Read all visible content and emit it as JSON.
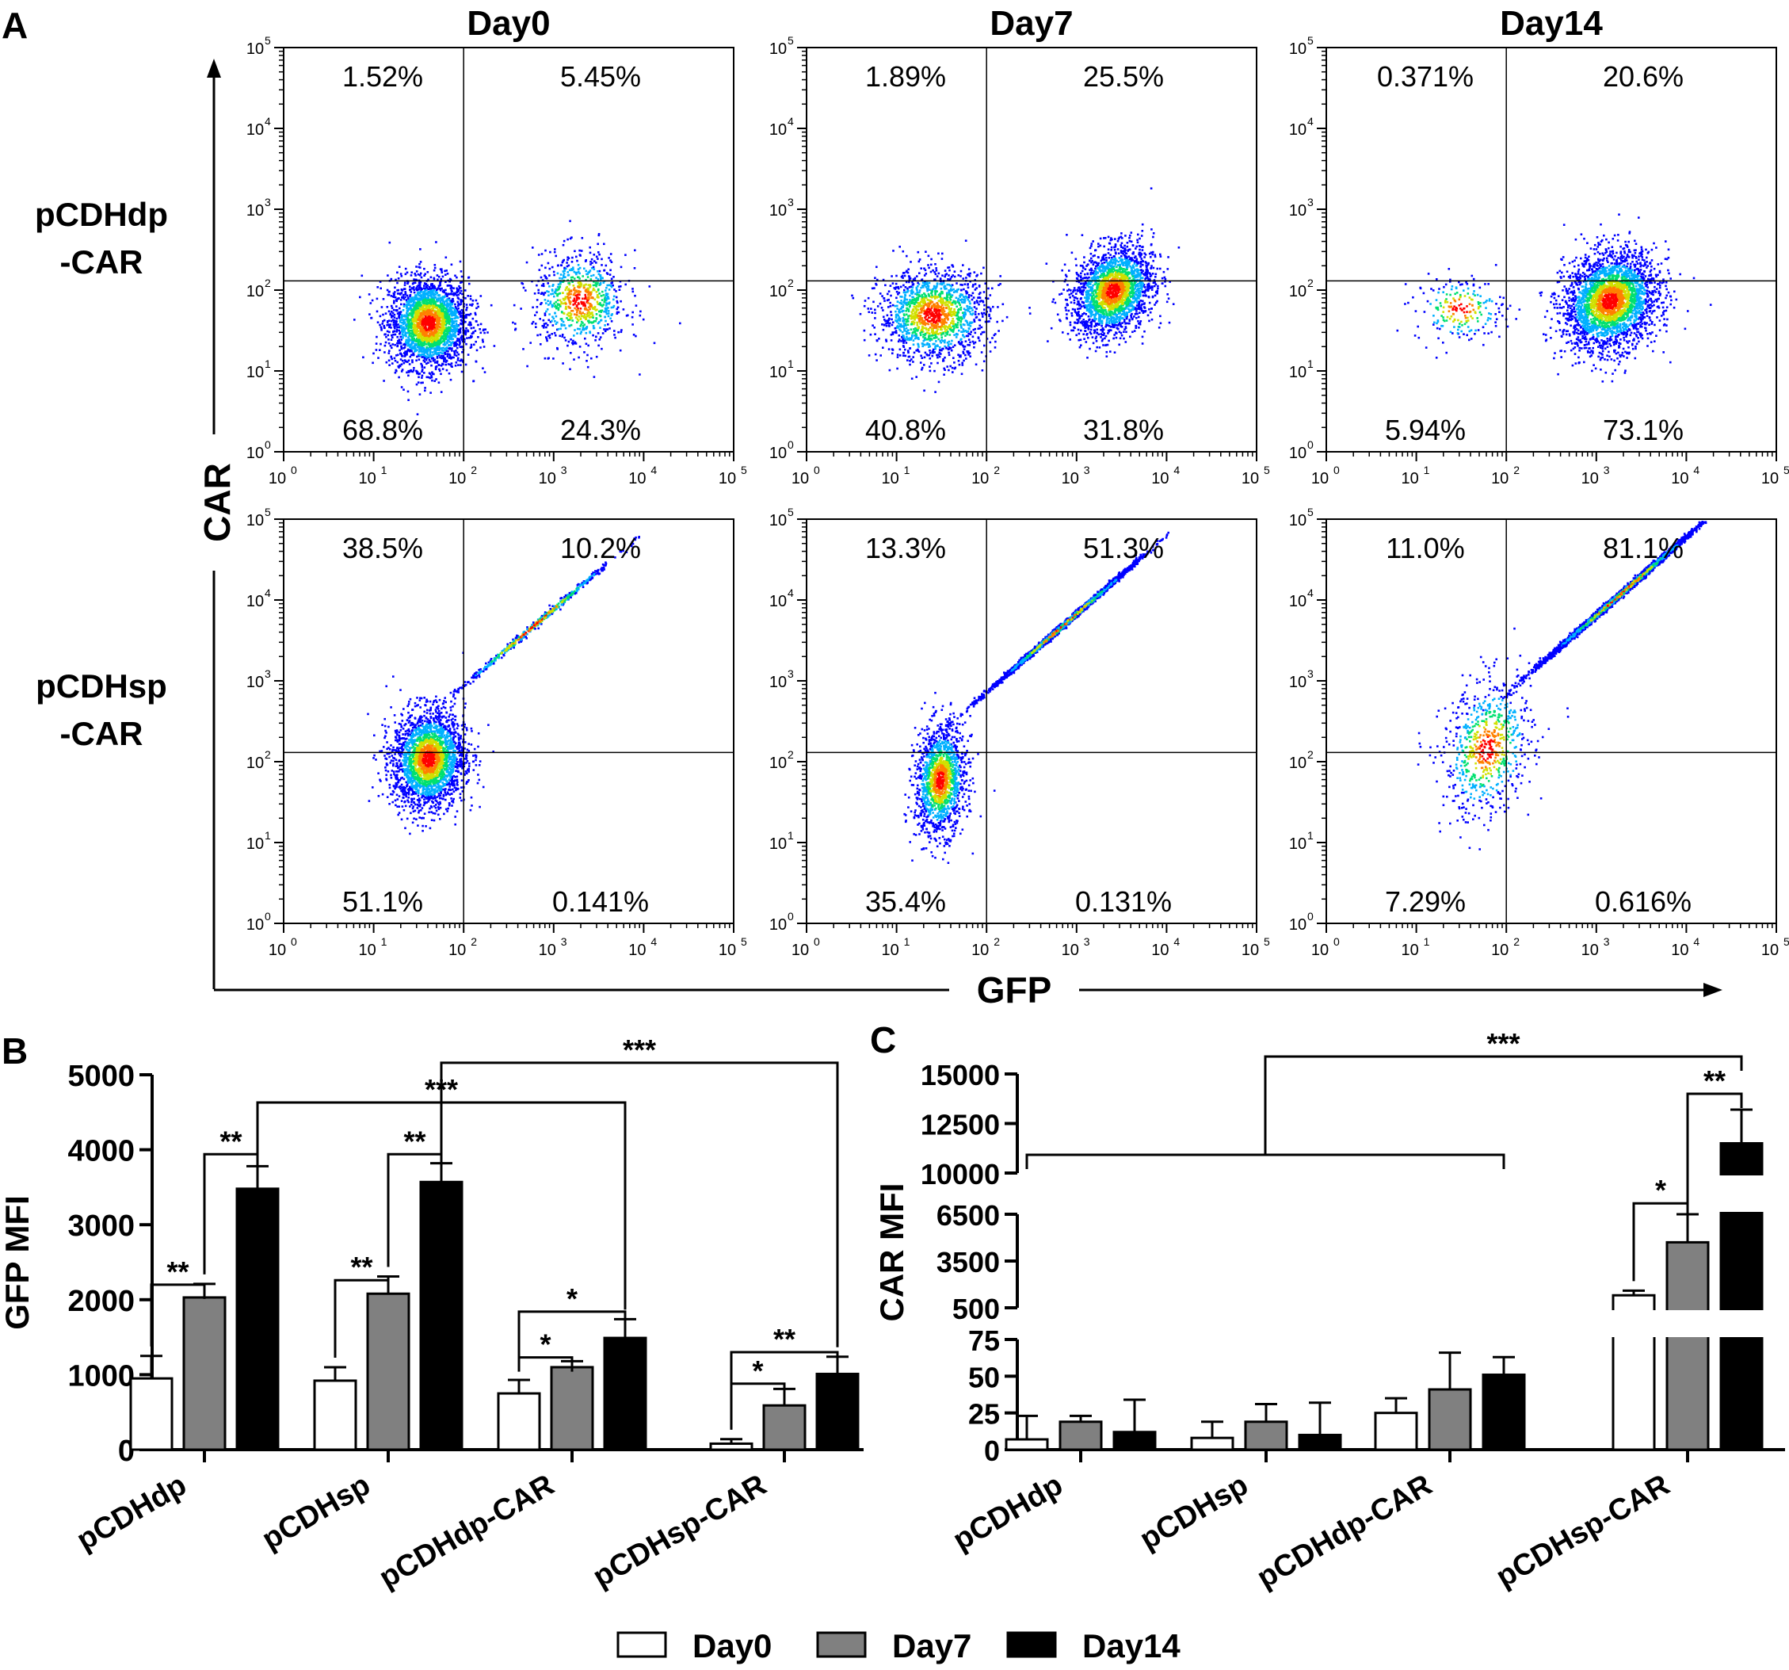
{
  "panel_letters": {
    "a": "A",
    "b": "B",
    "c": "C"
  },
  "colors": {
    "ink": "#000000",
    "day0_fill": "#ffffff",
    "day7_fill": "#808080",
    "day14_fill": "#000000",
    "density_palette": [
      "#0000ff",
      "#00b0ff",
      "#00e070",
      "#d0e000",
      "#ff8000",
      "#ff0000"
    ]
  },
  "chart_data": [
    {
      "type": "scatter",
      "id": "A",
      "description_kind": "flow-cytometry-density-grid",
      "columns": [
        "Day0",
        "Day7",
        "Day14"
      ],
      "rows": [
        {
          "label_line1": "pCDHdp",
          "label_line2": "-CAR"
        },
        {
          "label_line1": "pCDHsp",
          "label_line2": "-CAR"
        }
      ],
      "xlabel": "GFP",
      "ylabel": "CAR",
      "axis_scale": "log",
      "xlim": [
        1,
        100000
      ],
      "ylim": [
        1,
        100000
      ],
      "tick_labels": [
        "0",
        "1",
        "2",
        "3",
        "4",
        "5"
      ],
      "tick_base": "10",
      "gate": {
        "x": 100,
        "y": 130
      },
      "panels": [
        {
          "row": 0,
          "col": 0,
          "quadrants": {
            "ul": "1.52%",
            "ur": "5.45%",
            "ll": "68.8%",
            "lr": "24.3%"
          },
          "populations": [
            {
              "cx": 40,
              "cy": 40,
              "sx": 0.22,
              "sy": 0.28,
              "r": 0,
              "n": 2600
            },
            {
              "cx": 1900,
              "cy": 75,
              "sx": 0.26,
              "sy": 0.3,
              "r": 0,
              "n": 800
            }
          ]
        },
        {
          "row": 0,
          "col": 1,
          "quadrants": {
            "ul": "1.89%",
            "ur": "25.5%",
            "ll": "40.8%",
            "lr": "31.8%"
          },
          "populations": [
            {
              "cx": 25,
              "cy": 50,
              "sx": 0.3,
              "sy": 0.28,
              "r": 0,
              "n": 1500
            },
            {
              "cx": 2500,
              "cy": 100,
              "sx": 0.22,
              "sy": 0.28,
              "r": 0.3,
              "n": 2200
            }
          ]
        },
        {
          "row": 0,
          "col": 2,
          "quadrants": {
            "ul": "0.371%",
            "ur": "20.6%",
            "ll": "5.94%",
            "lr": "73.1%"
          },
          "populations": [
            {
              "cx": 30,
              "cy": 60,
              "sx": 0.25,
              "sy": 0.2,
              "r": 0,
              "n": 220
            },
            {
              "cx": 1400,
              "cy": 75,
              "sx": 0.26,
              "sy": 0.3,
              "r": 0.2,
              "n": 2800
            }
          ]
        },
        {
          "row": 1,
          "col": 0,
          "quadrants": {
            "ul": "38.5%",
            "ur": "10.2%",
            "ll": "51.1%",
            "lr": "0.141%"
          },
          "populations": [
            {
              "cx": 40,
              "cy": 110,
              "sx": 0.2,
              "sy": 0.3,
              "r": 0.1,
              "n": 2500
            },
            {
              "cx": 600,
              "cy": 5000,
              "sx": 0.45,
              "sy": 0.08,
              "r": 0.95,
              "n": 500
            }
          ]
        },
        {
          "row": 1,
          "col": 1,
          "quadrants": {
            "ul": "13.3%",
            "ur": "51.3%",
            "ll": "35.4%",
            "lr": "0.131%"
          },
          "populations": [
            {
              "cx": 30,
              "cy": 60,
              "sx": 0.14,
              "sy": 0.35,
              "r": 0.3,
              "n": 1500
            },
            {
              "cx": 700,
              "cy": 5000,
              "sx": 0.42,
              "sy": 0.08,
              "r": 0.97,
              "n": 2400
            }
          ]
        },
        {
          "row": 1,
          "col": 2,
          "quadrants": {
            "ul": "11.0%",
            "ur": "81.1%",
            "ll": "7.29%",
            "lr": "0.616%"
          },
          "populations": [
            {
              "cx": 1800,
              "cy": 12000,
              "sx": 0.45,
              "sy": 0.09,
              "r": 0.97,
              "n": 3200
            },
            {
              "cx": 60,
              "cy": 150,
              "sx": 0.25,
              "sy": 0.45,
              "r": 0.4,
              "n": 700
            }
          ]
        }
      ]
    },
    {
      "type": "bar",
      "id": "B",
      "categories": [
        "pCDHdp",
        "pCDHsp",
        "pCDHdp-CAR",
        "pCDHsp-CAR"
      ],
      "ylabel": "GFP  MFI",
      "ylim": [
        0,
        5000
      ],
      "yticks": [
        0,
        1000,
        2000,
        3000,
        4000,
        5000
      ],
      "ytick_labels": [
        "0",
        "1000",
        "2000",
        "3000",
        "4000",
        "5000"
      ],
      "series": [
        {
          "name": "Day0",
          "values": [
            950,
            920,
            750,
            80
          ],
          "errors": [
            300,
            180,
            180,
            60
          ]
        },
        {
          "name": "Day7",
          "values": [
            2030,
            2080,
            1100,
            590
          ],
          "errors": [
            180,
            230,
            80,
            220
          ]
        },
        {
          "name": "Day14",
          "values": [
            3480,
            3570,
            1490,
            1010
          ],
          "errors": [
            300,
            250,
            250,
            230
          ]
        }
      ],
      "brackets": [
        {
          "from": [
            0,
            0
          ],
          "to": [
            0,
            1
          ],
          "y": 2200,
          "label": "**"
        },
        {
          "from": [
            0,
            1
          ],
          "to": [
            0,
            2
          ],
          "y": 3940,
          "label": "**"
        },
        {
          "from": [
            1,
            0
          ],
          "to": [
            1,
            1
          ],
          "y": 2260,
          "label": "**"
        },
        {
          "from": [
            1,
            1
          ],
          "to": [
            1,
            2
          ],
          "y": 3940,
          "label": "**"
        },
        {
          "from": [
            2,
            0
          ],
          "to": [
            2,
            1
          ],
          "y": 1230,
          "label": "*"
        },
        {
          "from": [
            2,
            0
          ],
          "to": [
            2,
            2
          ],
          "y": 1840,
          "label": "*"
        },
        {
          "from": [
            3,
            0
          ],
          "to": [
            3,
            1
          ],
          "y": 880,
          "label": "*"
        },
        {
          "from": [
            3,
            0
          ],
          "to": [
            3,
            2
          ],
          "y": 1300,
          "label": "**"
        },
        {
          "from": [
            0,
            2
          ],
          "to": [
            2,
            2
          ],
          "y": 4630,
          "label": "***"
        },
        {
          "from": [
            1,
            2
          ],
          "to": [
            3,
            2
          ],
          "y": 5160,
          "label": "***"
        }
      ]
    },
    {
      "type": "bar",
      "id": "C",
      "categories": [
        "pCDHdp",
        "pCDHsp",
        "pCDHdp-CAR",
        "pCDHsp-CAR"
      ],
      "ylabel": "CAR  MFI",
      "broken_axis_segments": [
        {
          "range": [
            0,
            75
          ],
          "ticks": [
            0,
            25,
            50,
            75
          ],
          "tick_labels": [
            "0",
            "25",
            "50",
            "75"
          ]
        },
        {
          "range": [
            500,
            6500
          ],
          "ticks": [
            500,
            3500,
            6500
          ],
          "tick_labels": [
            "500",
            "3500",
            "6500"
          ]
        },
        {
          "range": [
            10000,
            15000
          ],
          "ticks": [
            10000,
            12500,
            15000
          ],
          "tick_labels": [
            "10000",
            "12500",
            "15000"
          ]
        }
      ],
      "series": [
        {
          "name": "Day0",
          "values": [
            7,
            8,
            25,
            1300
          ],
          "errors": [
            16,
            11,
            10,
            300
          ]
        },
        {
          "name": "Day7",
          "values": [
            19,
            19,
            41,
            4700
          ],
          "errors": [
            4,
            12,
            25,
            1800
          ]
        },
        {
          "name": "Day14",
          "values": [
            12,
            10,
            51,
            11500
          ],
          "errors": [
            22,
            22,
            12,
            1700
          ]
        }
      ],
      "brackets": [
        {
          "from": [
            3,
            0
          ],
          "to": [
            3,
            1
          ],
          "y": 7200,
          "label": "*"
        },
        {
          "from": [
            3,
            1
          ],
          "to": [
            3,
            2
          ],
          "y": 14000,
          "label": "**"
        }
      ],
      "group_bracket": {
        "left_categories": [
          0,
          1,
          2
        ],
        "right_category": 3,
        "label": "***"
      }
    }
  ],
  "legend": [
    {
      "label": "Day0"
    },
    {
      "label": "Day7"
    },
    {
      "label": "Day14"
    }
  ]
}
